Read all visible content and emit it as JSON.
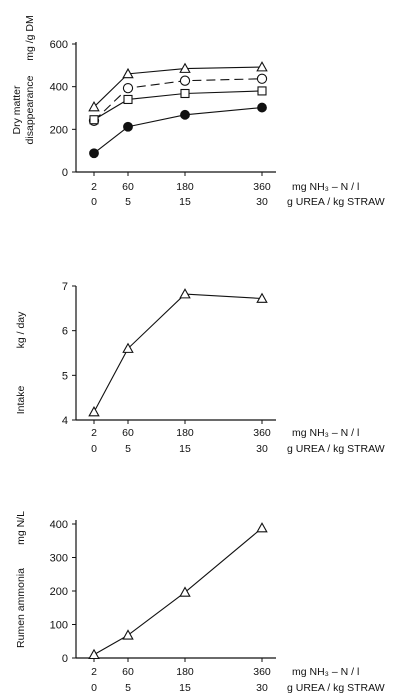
{
  "chart_data": [
    {
      "type": "line",
      "ylabel_line1": "Dry   matter",
      "ylabel_line2": "disappearance",
      "ylabel_unit": "mg /g DM",
      "ylim": [
        0,
        600
      ],
      "yticks": [
        "0",
        "200",
        "400",
        "600"
      ],
      "x": [
        2,
        60,
        180,
        360
      ],
      "x_tick_labels": [
        "2",
        "60",
        "180",
        "360"
      ],
      "x_unit": "mg NH₃ – N / l",
      "x2_tick_labels": [
        "0",
        "5",
        "15",
        "30"
      ],
      "x2_unit": "g UREA / kg STRAW",
      "series": [
        {
          "marker": "triangle",
          "dashed": false,
          "values": [
            305,
            460,
            485,
            492
          ]
        },
        {
          "marker": "circle-open",
          "dashed": true,
          "values": [
            240,
            393,
            428,
            437
          ]
        },
        {
          "marker": "square",
          "dashed": false,
          "values": [
            245,
            340,
            368,
            380
          ]
        },
        {
          "marker": "circle-filled",
          "dashed": false,
          "values": [
            88,
            212,
            268,
            302
          ]
        }
      ]
    },
    {
      "type": "line",
      "ylabel_line1": "Intake",
      "ylabel_unit": "kg / day",
      "ylim": [
        4,
        7
      ],
      "yticks": [
        "4",
        "5",
        "6",
        "7"
      ],
      "x": [
        2,
        60,
        180,
        360
      ],
      "x_tick_labels": [
        "2",
        "60",
        "180",
        "360"
      ],
      "x_unit": "mg NH₃ – N / l",
      "x2_tick_labels": [
        "0",
        "5",
        "15",
        "30"
      ],
      "x2_unit": "g UREA / kg STRAW",
      "series": [
        {
          "marker": "triangle",
          "dashed": false,
          "values": [
            4.18,
            5.6,
            6.82,
            6.72
          ]
        }
      ]
    },
    {
      "type": "line",
      "ylabel_line1": "Rumen  ammonia",
      "ylabel_unit": "mg N/L",
      "ylim": [
        0,
        400
      ],
      "yticks": [
        "0",
        "100",
        "200",
        "300",
        "400"
      ],
      "x": [
        2,
        60,
        180,
        360
      ],
      "x_tick_labels": [
        "2",
        "60",
        "180",
        "360"
      ],
      "x_unit": "mg NH₃ – N / l",
      "x2_tick_labels": [
        "0",
        "5",
        "15",
        "30"
      ],
      "x2_unit": "g UREA / kg STRAW",
      "series": [
        {
          "marker": "triangle",
          "dashed": false,
          "values": [
            10,
            68,
            196,
            388
          ]
        }
      ]
    }
  ]
}
